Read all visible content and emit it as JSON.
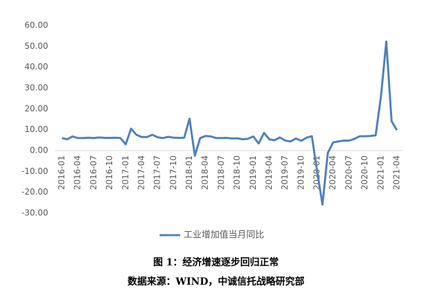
{
  "chart_data": {
    "type": "line",
    "categories": [
      "2016-01",
      null,
      null,
      "2016-04",
      null,
      null,
      "2016-07",
      null,
      null,
      "2016-10",
      null,
      null,
      "2017-01",
      null,
      null,
      "2017-04",
      null,
      null,
      "2017-07",
      null,
      null,
      "2017-10",
      null,
      null,
      "2018-01",
      null,
      null,
      "2018-04",
      null,
      null,
      "2018-07",
      null,
      null,
      "2018-10",
      null,
      null,
      "2019-01",
      null,
      null,
      "2019-04",
      null,
      null,
      "2019-07",
      null,
      null,
      "2019-10",
      null,
      null,
      "2020-01",
      null,
      null,
      "2020-04",
      null,
      null,
      "2020-07",
      null,
      null,
      "2020-10",
      null,
      null,
      "2021-01",
      null,
      null,
      "2021-04"
    ],
    "series": [
      {
        "name": "工业增加值当月同比",
        "color": "#4f81bd",
        "values": [
          6.0,
          5.4,
          6.8,
          6.0,
          6.0,
          6.2,
          6.0,
          6.3,
          6.1,
          6.1,
          6.2,
          6.0,
          3.0,
          10.5,
          7.6,
          6.5,
          6.5,
          7.6,
          6.4,
          6.0,
          6.6,
          6.2,
          6.1,
          6.2,
          15.3,
          -2.5,
          6.0,
          7.0,
          6.8,
          6.0,
          6.0,
          6.1,
          5.8,
          5.9,
          5.4,
          5.7,
          6.8,
          3.4,
          8.5,
          5.4,
          5.0,
          6.3,
          4.8,
          4.4,
          5.8,
          4.7,
          6.2,
          6.9,
          -10,
          -25.9,
          -1.1,
          3.9,
          4.4,
          4.8,
          4.8,
          5.6,
          6.9,
          6.9,
          7.0,
          7.3,
          26,
          52.3,
          14.1,
          9.8
        ]
      }
    ],
    "ylim": [
      -30,
      60
    ],
    "yticks": [
      {
        "value": -30,
        "label": "-30.00"
      },
      {
        "value": -20,
        "label": "-20.00"
      },
      {
        "value": -10,
        "label": "-10.00"
      },
      {
        "value": 0,
        "label": "0.00"
      },
      {
        "value": 10,
        "label": "10.00"
      },
      {
        "value": 20,
        "label": "20.00"
      },
      {
        "value": 30,
        "label": "30.00"
      },
      {
        "value": 40,
        "label": "40.00"
      },
      {
        "value": 50,
        "label": "50.00"
      },
      {
        "value": 60,
        "label": "60.00"
      }
    ],
    "grid": false,
    "legend": "bottom",
    "caption": "图 1：经济增速逐步回归正常",
    "source": "数据来源：WIND，中诚信托战略研究部"
  }
}
